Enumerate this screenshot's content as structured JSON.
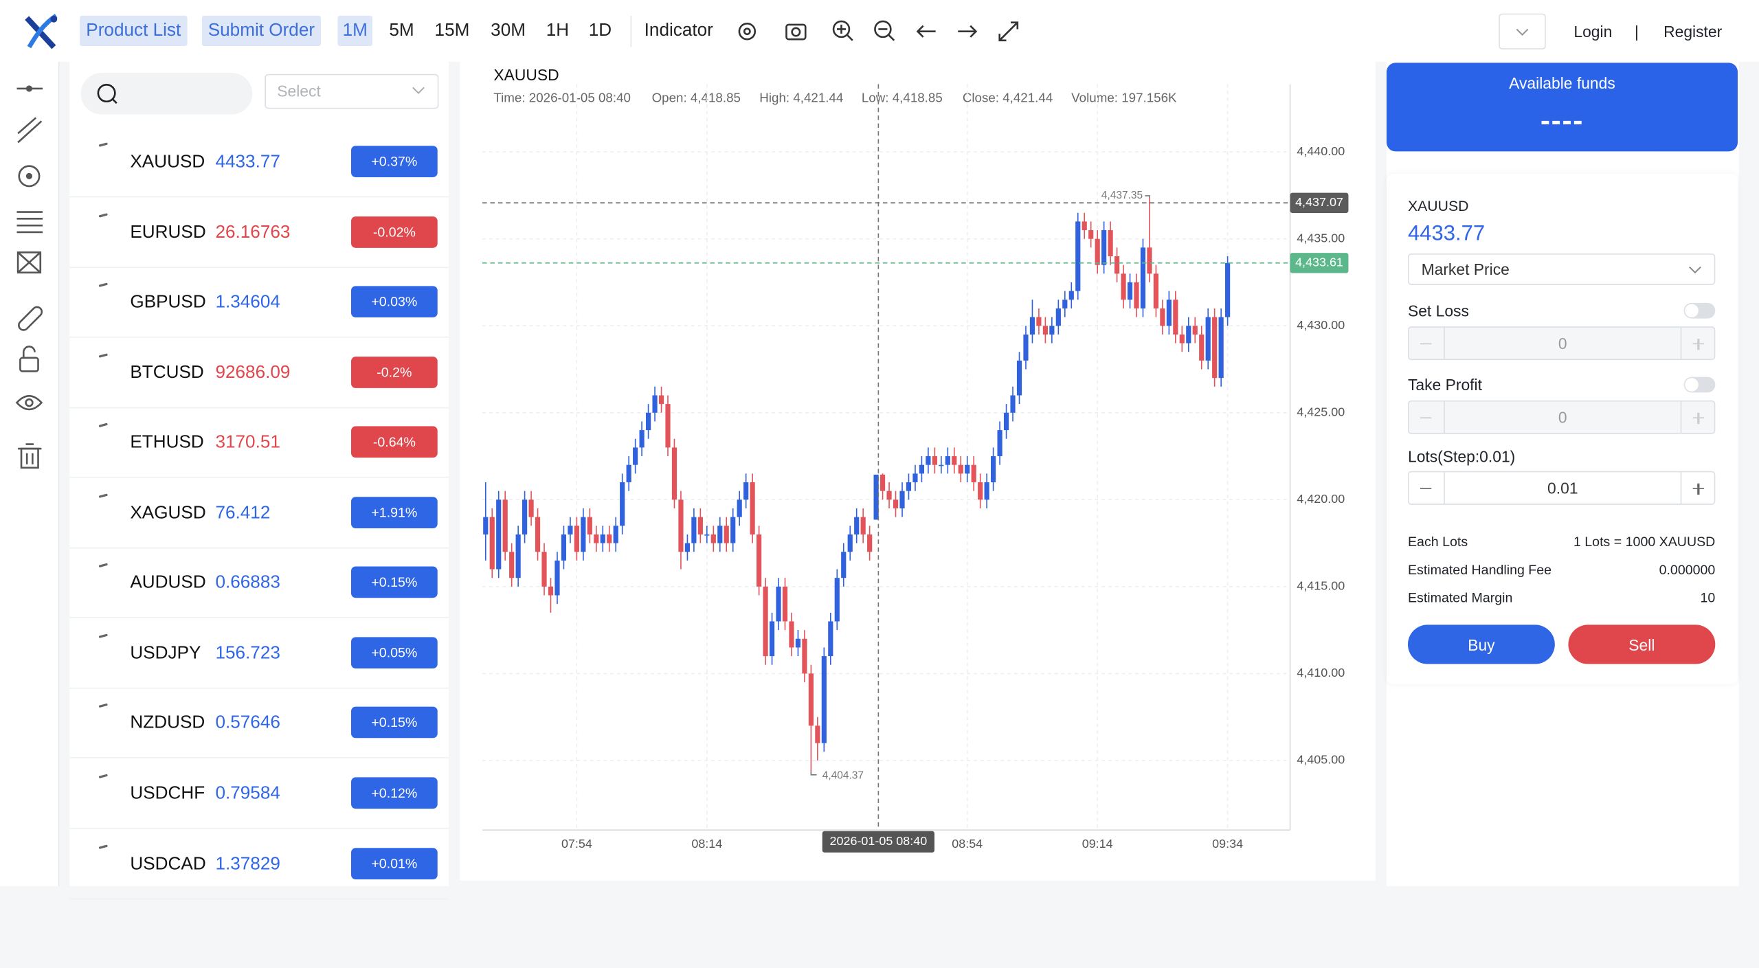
{
  "nav": {
    "tabs": [
      "Product List",
      "Submit Order"
    ],
    "intervals": [
      "1M",
      "5M",
      "15M",
      "30M",
      "1H",
      "1D"
    ],
    "indicator": "Indicator",
    "login": "Login",
    "separator": "|",
    "register": "Register"
  },
  "search": {
    "select_placeholder": "Select"
  },
  "products": [
    {
      "symbol": "XAUUSD",
      "price": 4433.77,
      "change": "+0.37%",
      "color": "#2f66e6"
    },
    {
      "symbol": "EURUSD",
      "price": 26.16763,
      "change": "-0.02%",
      "color": "#e0474c"
    },
    {
      "symbol": "GBPUSD",
      "price": 1.34604,
      "change": "+0.03%",
      "color": "#2f66e6"
    },
    {
      "symbol": "BTCUSD",
      "price": 92686.09,
      "change": "-0.2%",
      "color": "#e0474c"
    },
    {
      "symbol": "ETHUSD",
      "price": 3170.51,
      "change": "-0.64%",
      "color": "#e0474c"
    },
    {
      "symbol": "XAGUSD",
      "price": 76.412,
      "change": "+1.91%",
      "color": "#2f66e6"
    },
    {
      "symbol": "AUDUSD",
      "price": 0.66883,
      "change": "+0.15%",
      "color": "#2f66e6"
    },
    {
      "symbol": "USDJPY",
      "price": 156.723,
      "change": "+0.05%",
      "color": "#2f66e6"
    },
    {
      "symbol": "NZDUSD",
      "price": 0.57646,
      "change": "+0.15%",
      "color": "#2f66e6"
    },
    {
      "symbol": "USDCHF",
      "price": 0.79584,
      "change": "+0.12%",
      "color": "#2f66e6"
    },
    {
      "symbol": "USDCAD",
      "price": 1.37829,
      "change": "+0.01%",
      "color": "#2f66e6"
    }
  ],
  "chart": {
    "type": "candlestick",
    "title": "XAUUSD",
    "tooltip": [
      "Time: 2026-01-05 08:40",
      "Open: 4,418.85",
      "High: 4,421.44",
      "Low: 4,418.85",
      "Close: 4,421.44",
      "Volume: 197.156K"
    ],
    "up_color": "#2f62dc",
    "down_color": "#e2545a",
    "ylim": [
      4401,
      4443.9
    ],
    "yticks": [
      {
        "value": 4405,
        "label": "4,405.00"
      },
      {
        "value": 4410,
        "label": "4,410.00"
      },
      {
        "value": 4415,
        "label": "4,415.00"
      },
      {
        "value": 4420,
        "label": "4,420.00"
      },
      {
        "value": 4425,
        "label": "4,425.00"
      },
      {
        "value": 4430,
        "label": "4,430.00"
      },
      {
        "value": 4435,
        "label": "4,435.00"
      },
      {
        "value": 4440,
        "label": "4,440.00"
      }
    ],
    "xlim": [
      -0.5,
      123.6
    ],
    "xticks": [
      {
        "value": 14,
        "label": "07:54"
      },
      {
        "value": 34,
        "label": "08:14"
      },
      {
        "value": 74,
        "label": "08:54"
      },
      {
        "value": 94,
        "label": "09:14"
      },
      {
        "value": 114,
        "label": "09:34"
      }
    ],
    "crosshair_label": "2026-01-05 08:40",
    "price_lines": [
      {
        "value": 4437.07,
        "label": "4,437.07",
        "color": "#5b5b5b"
      },
      {
        "value": 4433.61,
        "label": "4,433.61",
        "color": "#5cb88a"
      }
    ],
    "high_label": {
      "value": 4437.35,
      "label": "4,437.35"
    },
    "low_label": {
      "value": 4404.37,
      "label": "4,404.37"
    },
    "candles": [
      [
        4418,
        4421,
        4416.5,
        4419
      ],
      [
        4419,
        4419.5,
        4415.5,
        4416
      ],
      [
        4416,
        4420.5,
        4415.5,
        4420
      ],
      [
        4420,
        4420.5,
        4416.5,
        4417
      ],
      [
        4417,
        4417.5,
        4415,
        4415.5
      ],
      [
        4415.5,
        4418.5,
        4415,
        4418
      ],
      [
        4418,
        4420.5,
        4417.5,
        4420
      ],
      [
        4420,
        4420.5,
        4418.5,
        4419
      ],
      [
        4419,
        4419.5,
        4416.5,
        4417
      ],
      [
        4417,
        4417.5,
        4414.5,
        4415
      ],
      [
        4415,
        4415.5,
        4413.5,
        4414.5
      ],
      [
        4414.5,
        4417,
        4414,
        4416.5
      ],
      [
        4416.5,
        4418.5,
        4416,
        4418
      ],
      [
        4418,
        4419,
        4417.5,
        4418.5
      ],
      [
        4418.5,
        4419,
        4416.5,
        4417
      ],
      [
        4417,
        4419.5,
        4416.5,
        4419
      ],
      [
        4419,
        4419.5,
        4417.5,
        4418
      ],
      [
        4418,
        4418.5,
        4417,
        4417.5
      ],
      [
        4417.5,
        4418.5,
        4417,
        4418
      ],
      [
        4418,
        4418.5,
        4417,
        4417.5
      ],
      [
        4417.5,
        4419,
        4417,
        4418.5
      ],
      [
        4418.5,
        4421.5,
        4418,
        4421
      ],
      [
        4421,
        4422.5,
        4420.5,
        4422
      ],
      [
        4422,
        4423.5,
        4421.5,
        4423
      ],
      [
        4423,
        4424.5,
        4422.5,
        4424
      ],
      [
        4424,
        4425.5,
        4423.5,
        4425
      ],
      [
        4425,
        4426.5,
        4424.5,
        4426
      ],
      [
        4426,
        4426.5,
        4425,
        4425.5
      ],
      [
        4425.5,
        4426,
        4422.5,
        4423
      ],
      [
        4423,
        4423.5,
        4419.5,
        4420
      ],
      [
        4420,
        4420.5,
        4416,
        4417
      ],
      [
        4417,
        4418,
        4416.5,
        4417.5
      ],
      [
        4417.5,
        4419.5,
        4417,
        4419
      ],
      [
        4419,
        4419.5,
        4417.5,
        4418
      ],
      [
        4418,
        4418.5,
        4417.5,
        4418
      ],
      [
        4418,
        4418.5,
        4417,
        4417.5
      ],
      [
        4417.5,
        4419,
        4417,
        4418.5
      ],
      [
        4418.5,
        4419,
        4417,
        4417.5
      ],
      [
        4417.5,
        4419.5,
        4417,
        4419
      ],
      [
        4419,
        4420.5,
        4418.5,
        4420
      ],
      [
        4420,
        4421.5,
        4419.5,
        4421
      ],
      [
        4421,
        4421.5,
        4417.5,
        4418
      ],
      [
        4418,
        4418.5,
        4414.5,
        4415
      ],
      [
        4415,
        4415.5,
        4410.5,
        4411
      ],
      [
        4411,
        4413.5,
        4410.5,
        4413
      ],
      [
        4413,
        4415.5,
        4412.5,
        4415
      ],
      [
        4415,
        4415.5,
        4412.5,
        4413
      ],
      [
        4413,
        4413.5,
        4411,
        4411.5
      ],
      [
        4411.5,
        4412.5,
        4411,
        4412
      ],
      [
        4412,
        4412.5,
        4409.5,
        4410
      ],
      [
        4410,
        4410.5,
        4404.37,
        4407
      ],
      [
        4407,
        4407.5,
        4405,
        4406
      ],
      [
        4406,
        4411.5,
        4405.5,
        4411
      ],
      [
        4411,
        4413.5,
        4410.5,
        4413
      ],
      [
        4413,
        4416,
        4412.5,
        4415.5
      ],
      [
        4415.5,
        4417.5,
        4415,
        4417
      ],
      [
        4417,
        4418.5,
        4416.5,
        4418
      ],
      [
        4418,
        4419.5,
        4417.5,
        4419
      ],
      [
        4419,
        4419.5,
        4417.5,
        4418
      ],
      [
        4418,
        4418.5,
        4416.5,
        4417
      ],
      [
        4418.85,
        4421.44,
        4418.85,
        4421.44
      ],
      [
        4421.44,
        4421.5,
        4420,
        4420.5
      ],
      [
        4420.5,
        4421,
        4419.5,
        4420
      ],
      [
        4420,
        4420.5,
        4419,
        4419.5
      ],
      [
        4419.5,
        4421,
        4419,
        4420.5
      ],
      [
        4420.5,
        4421.5,
        4420,
        4421
      ],
      [
        4421,
        4422,
        4420.5,
        4421.5
      ],
      [
        4421.5,
        4422.5,
        4421,
        4422
      ],
      [
        4422,
        4423,
        4421.5,
        4422.5
      ],
      [
        4422.5,
        4423,
        4421.5,
        4422
      ],
      [
        4422,
        4422.5,
        4421.5,
        4422
      ],
      [
        4422,
        4423,
        4421.5,
        4422.5
      ],
      [
        4422.5,
        4423,
        4421.5,
        4422
      ],
      [
        4422,
        4422.5,
        4421,
        4421.5
      ],
      [
        4421.5,
        4422.5,
        4421,
        4422
      ],
      [
        4422,
        4422.5,
        4420.5,
        4421
      ],
      [
        4421,
        4421.5,
        4419.5,
        4420
      ],
      [
        4420,
        4421.5,
        4419.5,
        4421
      ],
      [
        4421,
        4423,
        4420.5,
        4422.5
      ],
      [
        4422.5,
        4424.5,
        4422,
        4424
      ],
      [
        4424,
        4425.5,
        4423.5,
        4425
      ],
      [
        4425,
        4426.5,
        4424.5,
        4426
      ],
      [
        4426,
        4428.5,
        4425.5,
        4428
      ],
      [
        4428,
        4430,
        4427.5,
        4429.5
      ],
      [
        4429.5,
        4431.5,
        4429,
        4430.5
      ],
      [
        4430.5,
        4431,
        4429.5,
        4430
      ],
      [
        4430,
        4430.5,
        4429,
        4429.5
      ],
      [
        4429.5,
        4430.5,
        4429,
        4430
      ],
      [
        4430,
        4431.5,
        4429.5,
        4431
      ],
      [
        4431,
        4432,
        4430.5,
        4431.5
      ],
      [
        4431.5,
        4432.5,
        4431,
        4432
      ],
      [
        4432,
        4436.5,
        4431.5,
        4436
      ],
      [
        4436,
        4436.5,
        4435,
        4435.5
      ],
      [
        4435.5,
        4436,
        4434.5,
        4435
      ],
      [
        4435,
        4435.5,
        4433,
        4433.5
      ],
      [
        4433.5,
        4436,
        4433,
        4435.5
      ],
      [
        4435.5,
        4436,
        4433.5,
        4434
      ],
      [
        4434,
        4434.5,
        4432.5,
        4433
      ],
      [
        4433,
        4433.5,
        4431,
        4431.5
      ],
      [
        4431.5,
        4433,
        4431,
        4432.5
      ],
      [
        4432.5,
        4433,
        4430.5,
        4431
      ],
      [
        4431,
        4435,
        4430.5,
        4434.5
      ],
      [
        4434.5,
        4437.35,
        4432.5,
        4433
      ],
      [
        4433,
        4433.5,
        4430.5,
        4431
      ],
      [
        4431,
        4431.5,
        4429.5,
        4430
      ],
      [
        4430,
        4432,
        4429.5,
        4431.5
      ],
      [
        4431.5,
        4432,
        4429,
        4429.5
      ],
      [
        4429.5,
        4430,
        4428.5,
        4429
      ],
      [
        4429,
        4430.5,
        4428.5,
        4430
      ],
      [
        4430,
        4430.5,
        4429,
        4429.5
      ],
      [
        4429.5,
        4430,
        4427.5,
        4428
      ],
      [
        4428,
        4431,
        4427.5,
        4430.5
      ],
      [
        4430.5,
        4431,
        4426.5,
        4427
      ],
      [
        4427,
        4431,
        4426.5,
        4430.5
      ],
      [
        4430.5,
        4434,
        4430,
        4433.61
      ]
    ]
  },
  "order": {
    "funds_label": "Available funds",
    "funds_value": "----",
    "symbol": "XAUUSD",
    "price": "4433.77",
    "order_type": "Market Price",
    "set_loss": "Set Loss",
    "set_loss_value": "0",
    "take_profit": "Take Profit",
    "take_profit_value": "0",
    "lots_label": "Lots(Step:0.01)",
    "lots_value": "0.01",
    "rows": [
      [
        "Each Lots",
        "1 Lots = 1000 XAUUSD"
      ],
      [
        "Estimated Handling Fee",
        "0.000000"
      ],
      [
        "Estimated Margin",
        "10"
      ]
    ],
    "buy": "Buy",
    "sell": "Sell"
  }
}
